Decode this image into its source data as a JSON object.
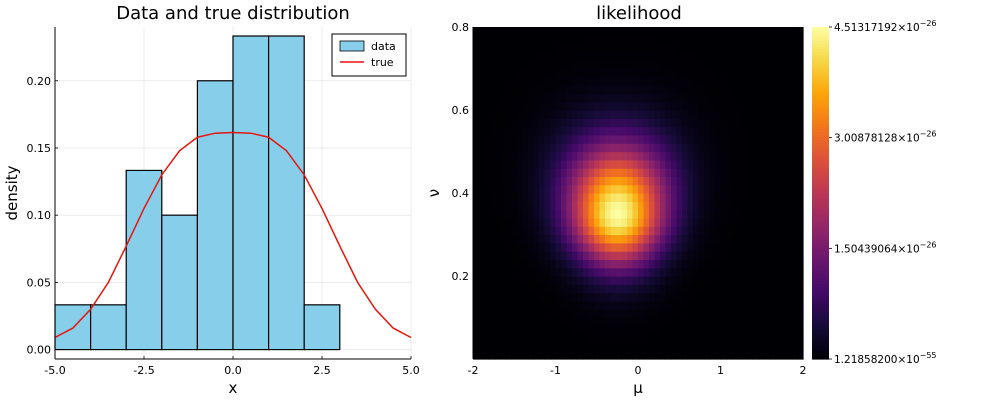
{
  "chart_data": [
    {
      "type": "bar",
      "title": "Data and true distribution",
      "xlabel": "x",
      "ylabel": "density",
      "xlim": [
        -5,
        5
      ],
      "ylim": [
        -0.007,
        0.24
      ],
      "xticks": [
        -5,
        -2.5,
        0,
        2.5,
        5
      ],
      "xtick_labels": [
        "-5.0",
        "-2.5",
        "0.0",
        "2.5",
        "5.0"
      ],
      "yticks": [
        0,
        0.05,
        0.1,
        0.15,
        0.2
      ],
      "ytick_labels": [
        "0.00",
        "0.05",
        "0.10",
        "0.15",
        "0.20"
      ],
      "grid": true,
      "legend": {
        "position": "top-right",
        "entries": [
          "data",
          "true"
        ]
      },
      "series": [
        {
          "name": "data",
          "kind": "histogram",
          "color": "#87CEEB",
          "edges": [
            -5,
            -4,
            -3,
            -2,
            -1,
            0,
            1,
            2,
            3
          ],
          "values": [
            0.0333,
            0.0333,
            0.1333,
            0.1,
            0.2,
            0.2333,
            0.2333,
            0.0333
          ]
        },
        {
          "name": "true",
          "kind": "line",
          "color": "#E8150C",
          "curve": "student-t like: peak 0.1615 on plateau [-0.5, 0.5], ~0.009 at x = ±5",
          "x": [
            -5,
            -4.5,
            -4,
            -3.5,
            -3,
            -2.5,
            -2,
            -1.5,
            -1,
            -0.5,
            0,
            0.5,
            1,
            1.5,
            2,
            2.5,
            3,
            3.5,
            4,
            4.5,
            5
          ],
          "y": [
            0.009,
            0.016,
            0.03,
            0.05,
            0.077,
            0.105,
            0.13,
            0.148,
            0.158,
            0.161,
            0.1615,
            0.161,
            0.158,
            0.148,
            0.13,
            0.105,
            0.077,
            0.05,
            0.03,
            0.016,
            0.009
          ]
        }
      ]
    },
    {
      "type": "heatmap",
      "title": "likelihood",
      "xlabel": "μ",
      "ylabel": "ν",
      "xlim": [
        -2,
        2
      ],
      "ylim": [
        0,
        0.8
      ],
      "xticks": [
        -2,
        -1,
        0,
        1,
        2
      ],
      "xtick_labels": [
        "-2",
        "-1",
        "0",
        "1",
        "2"
      ],
      "yticks": [
        0.2,
        0.4,
        0.6,
        0.8
      ],
      "ytick_labels": [
        "0.2",
        "0.4",
        "0.6",
        "0.8"
      ],
      "colormap": "inferno",
      "peak": {
        "mu": -0.25,
        "nu": 0.35
      },
      "grid_size": [
        60,
        40
      ],
      "colorbar": {
        "min": 1.218582e-55,
        "max": 4.51317192e-26,
        "ticks": [
          {
            "value": 1.218582e-55,
            "mantissa": "1.21858200",
            "exponent": "−55"
          },
          {
            "value": 1.50439064e-26,
            "mantissa": "1.50439064",
            "exponent": "−26"
          },
          {
            "value": 3.00878128e-26,
            "mantissa": "3.00878128",
            "exponent": "−26"
          },
          {
            "value": 4.51317192e-26,
            "mantissa": "4.51317192",
            "exponent": "−26"
          }
        ]
      }
    }
  ]
}
